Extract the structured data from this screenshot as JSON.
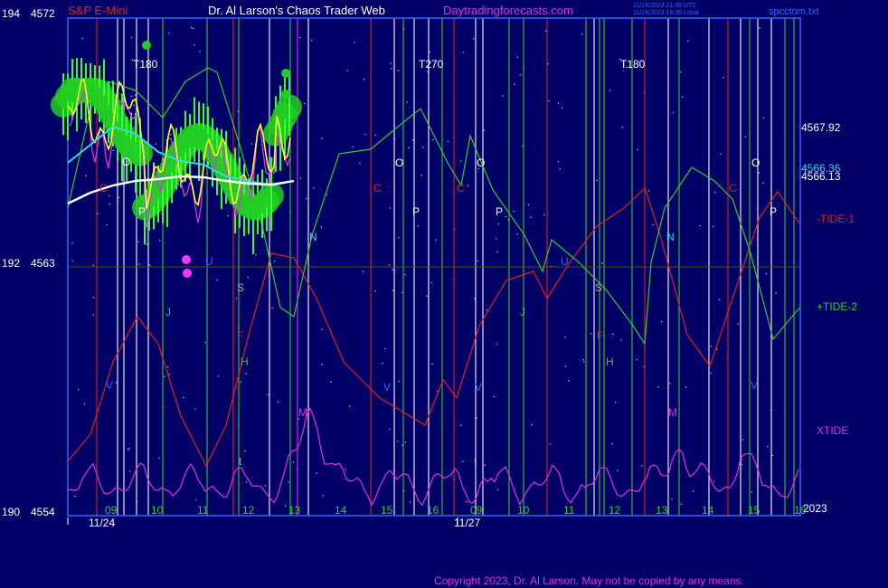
{
  "header": {
    "symbol": "S&P E-Mini",
    "title": "Dr. Al Larson's Chaos Trader Web",
    "site": "Daytradingforecasts.com",
    "time_utc": "11/24/2023 21:39 UTC",
    "time_local": "11/24/2023 16:39 Local",
    "file": "spcctom.txt"
  },
  "footer": {
    "copyright": "Copyright 2023, Dr. Al Larson. May not be copied by any means.",
    "year": "2023"
  },
  "colors": {
    "background": "#000066",
    "frame": "#3366ff",
    "tide1": "#dd2222",
    "tide2": "#33cc33",
    "xtide": "#dd33dd",
    "price_band": "#22cc22",
    "yellow": "#ffff33",
    "cyan": "#33dddd",
    "white": "#ffffff"
  },
  "chart_data": {
    "type": "line",
    "y_axis": {
      "ticks": [
        {
          "left": "194",
          "right": "4572",
          "value": 4572
        },
        {
          "left": "192",
          "right": "4563",
          "value": 4563
        },
        {
          "left": "190",
          "right": "4554",
          "value": 4554
        }
      ],
      "range": [
        4554,
        4572
      ]
    },
    "x_axis": {
      "hour_labels": [
        "09",
        "10",
        "11",
        "12",
        "13",
        "14",
        "15",
        "16",
        "09",
        "10",
        "11",
        "12",
        "13",
        "14",
        "15",
        "16"
      ],
      "date_labels": [
        "11/24",
        "11/27"
      ]
    },
    "price_levels": [
      {
        "label": "4567.92",
        "value": 4567.92,
        "color": "#ffffff"
      },
      {
        "label": "4566.36",
        "value": 4566.36,
        "color": "#33dddd"
      },
      {
        "label": "4566.13",
        "value": 4566.13,
        "color": "#ffffff"
      }
    ],
    "series": [
      {
        "name": "-TIDE-1",
        "color": "#dd2222"
      },
      {
        "name": "+TIDE-2",
        "color": "#33cc33"
      },
      {
        "name": "XTIDE",
        "color": "#dd33dd"
      }
    ],
    "time_markers": [
      "T180",
      "T270",
      "T180"
    ],
    "letter_labels": [
      {
        "text": "C",
        "color": "#dd2222"
      },
      {
        "text": "O",
        "color": "#ffffff"
      },
      {
        "text": "P",
        "color": "#ffffff"
      },
      {
        "text": "U",
        "color": "#3366ff"
      },
      {
        "text": "J",
        "color": "#33cc33"
      },
      {
        "text": "S",
        "color": "#aaaaaa"
      },
      {
        "text": "F",
        "color": "#dd2222"
      },
      {
        "text": "H",
        "color": "#33cc33"
      },
      {
        "text": "N",
        "color": "#33dddd"
      },
      {
        "text": "M",
        "color": "#dd33dd"
      },
      {
        "text": "V",
        "color": "#3366ff"
      },
      {
        "text": "t",
        "color": "#aaaaaa"
      },
      {
        "text": "C",
        "color": "#dd2222"
      },
      {
        "text": "O",
        "color": "#ffffff"
      },
      {
        "text": "C",
        "color": "#dd2222"
      },
      {
        "text": "O",
        "color": "#ffffff"
      },
      {
        "text": "P",
        "color": "#ffffff"
      },
      {
        "text": "P",
        "color": "#ffffff"
      },
      {
        "text": "V",
        "color": "#3366ff"
      },
      {
        "text": "V",
        "color": "#3366ff"
      },
      {
        "text": "t",
        "color": "#aaaaaa"
      },
      {
        "text": "J",
        "color": "#33cc33"
      },
      {
        "text": "U",
        "color": "#3366ff"
      },
      {
        "text": "S",
        "color": "#aaaaaa"
      },
      {
        "text": "F",
        "color": "#dd2222"
      },
      {
        "text": "H",
        "color": "#33cc33"
      },
      {
        "text": "N",
        "color": "#33dddd"
      },
      {
        "text": "M",
        "color": "#dd33dd"
      },
      {
        "text": "C",
        "color": "#dd2222"
      },
      {
        "text": "O",
        "color": "#ffffff"
      },
      {
        "text": "P",
        "color": "#ffffff"
      },
      {
        "text": "t",
        "color": "#aaaaaa"
      },
      {
        "text": "V",
        "color": "#3366ff"
      }
    ]
  }
}
